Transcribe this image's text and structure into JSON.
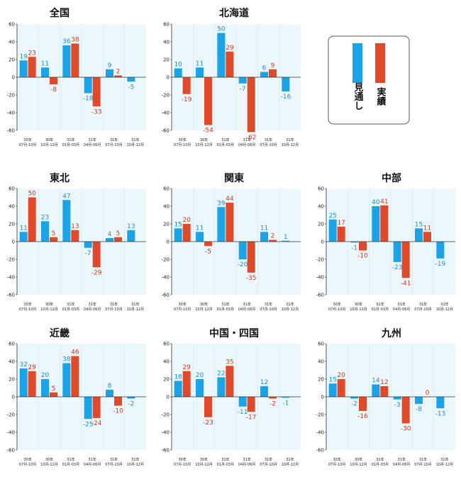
{
  "colors": {
    "plan": "#1aa3e6",
    "actual": "#e04a2a",
    "plot_bg": "#ecf7fb",
    "plan_label": "#1a8fd0",
    "actual_label": "#cc3a1c"
  },
  "legend": {
    "plan": "見通し",
    "actual": "実績"
  },
  "chart_data": [
    {
      "type": "bar",
      "title": "全国",
      "ylim": [
        -60,
        60
      ],
      "yticks": [
        60,
        40,
        20,
        0,
        -20,
        -40,
        -60
      ],
      "categories": [
        [
          "30年",
          "07月-10月"
        ],
        [
          "30年",
          "10月-12月"
        ],
        [
          "31年",
          "01月-03月"
        ],
        [
          "31年",
          "04月-06月"
        ],
        [
          "31年",
          "07月-10月"
        ],
        [
          "31年",
          "10月-12月"
        ]
      ],
      "series": [
        {
          "values": [
            19,
            11,
            36,
            -18,
            9,
            -5
          ]
        },
        {
          "values": [
            23,
            -8,
            38,
            -33,
            2,
            null
          ]
        }
      ]
    },
    {
      "type": "bar",
      "title": "北海道",
      "ylim": [
        -60,
        60
      ],
      "yticks": [
        60,
        40,
        20,
        0,
        -20,
        -40,
        -60
      ],
      "categories": [
        [
          "30年",
          "07月-10月"
        ],
        [
          "30年",
          "10月-12月"
        ],
        [
          "31年",
          "01月-03月"
        ],
        [
          "31年",
          "04月-06月"
        ],
        [
          "31年",
          "07月-10月"
        ],
        [
          "31年",
          "10月-12月"
        ]
      ],
      "series": [
        {
          "values": [
            10,
            11,
            50,
            -7,
            6,
            -16
          ]
        },
        {
          "values": [
            -19,
            -54,
            29,
            -62,
            9,
            null
          ]
        }
      ]
    },
    {
      "type": "bar",
      "title": "東北",
      "ylim": [
        -60,
        60
      ],
      "yticks": [
        60,
        40,
        20,
        0,
        -20,
        -40,
        -60
      ],
      "categories": [
        [
          "30年",
          "07月-10月"
        ],
        [
          "30年",
          "10月-12月"
        ],
        [
          "31年",
          "01月-03月"
        ],
        [
          "31年",
          "04月-06月"
        ],
        [
          "31年",
          "07月-10月"
        ],
        [
          "31年",
          "10月-12月"
        ]
      ],
      "series": [
        {
          "values": [
            11,
            23,
            47,
            -7,
            4,
            13
          ]
        },
        {
          "values": [
            50,
            5,
            13,
            -29,
            5,
            null
          ]
        }
      ]
    },
    {
      "type": "bar",
      "title": "関東",
      "ylim": [
        -60,
        60
      ],
      "yticks": [
        60,
        40,
        20,
        0,
        -20,
        -40,
        -60
      ],
      "categories": [
        [
          "30年",
          "07月-10月"
        ],
        [
          "30年",
          "10月-12月"
        ],
        [
          "31年",
          "01月-03月"
        ],
        [
          "31年",
          "04月-06月"
        ],
        [
          "31年",
          "07月-10月"
        ],
        [
          "31年",
          "10月-12月"
        ]
      ],
      "series": [
        {
          "values": [
            15,
            11,
            39,
            -20,
            11,
            1
          ]
        },
        {
          "values": [
            20,
            -5,
            44,
            -35,
            2,
            null
          ]
        }
      ]
    },
    {
      "type": "bar",
      "title": "中部",
      "ylim": [
        -60,
        60
      ],
      "yticks": [
        60,
        40,
        20,
        0,
        -20,
        -40,
        -60
      ],
      "categories": [
        [
          "30年",
          "07月-10月"
        ],
        [
          "30年",
          "10月-12月"
        ],
        [
          "31年",
          "01月-03月"
        ],
        [
          "31年",
          "04月-06月"
        ],
        [
          "31年",
          "07月-10月"
        ],
        [
          "31年",
          "10月-12月"
        ]
      ],
      "series": [
        {
          "values": [
            25,
            -1,
            40,
            -23,
            15,
            -19
          ]
        },
        {
          "values": [
            17,
            -10,
            41,
            -41,
            11,
            null
          ]
        }
      ]
    },
    {
      "type": "bar",
      "title": "近畿",
      "ylim": [
        -60,
        60
      ],
      "yticks": [
        60,
        40,
        20,
        0,
        -20,
        -40,
        -60
      ],
      "categories": [
        [
          "30年",
          "07月-10月"
        ],
        [
          "30年",
          "10月-12月"
        ],
        [
          "31年",
          "01月-03月"
        ],
        [
          "31年",
          "04月-06月"
        ],
        [
          "31年",
          "07月-10月"
        ],
        [
          "31年",
          "10月-12月"
        ]
      ],
      "series": [
        {
          "values": [
            32,
            20,
            38,
            -25,
            8,
            -2
          ]
        },
        {
          "values": [
            29,
            5,
            46,
            -24,
            -10,
            null
          ]
        }
      ]
    },
    {
      "type": "bar",
      "title": "中国・四国",
      "ylim": [
        -60,
        60
      ],
      "yticks": [
        60,
        40,
        20,
        0,
        -20,
        -40,
        -60
      ],
      "categories": [
        [
          "30年",
          "07月-10月"
        ],
        [
          "30年",
          "10月-12月"
        ],
        [
          "31年",
          "01月-03月"
        ],
        [
          "31年",
          "04月-06月"
        ],
        [
          "31年",
          "07月-10月"
        ],
        [
          "31年",
          "10月-12月"
        ]
      ],
      "series": [
        {
          "values": [
            18,
            20,
            22,
            -11,
            12,
            -1
          ]
        },
        {
          "values": [
            29,
            -23,
            35,
            -17,
            -2,
            null
          ]
        }
      ]
    },
    {
      "type": "bar",
      "title": "九州",
      "ylim": [
        -60,
        60
      ],
      "yticks": [
        60,
        40,
        20,
        0,
        -20,
        -40,
        -60
      ],
      "categories": [
        [
          "30年",
          "07月-10月"
        ],
        [
          "30年",
          "10月-12月"
        ],
        [
          "31年",
          "01月-03月"
        ],
        [
          "31年",
          "04月-06月"
        ],
        [
          "31年",
          "07月-10月"
        ],
        [
          "31年",
          "10月-12月"
        ]
      ],
      "series": [
        {
          "values": [
            15,
            -2,
            14,
            -3,
            -8,
            -13
          ]
        },
        {
          "values": [
            20,
            -16,
            12,
            -30,
            0,
            null
          ]
        }
      ]
    }
  ]
}
